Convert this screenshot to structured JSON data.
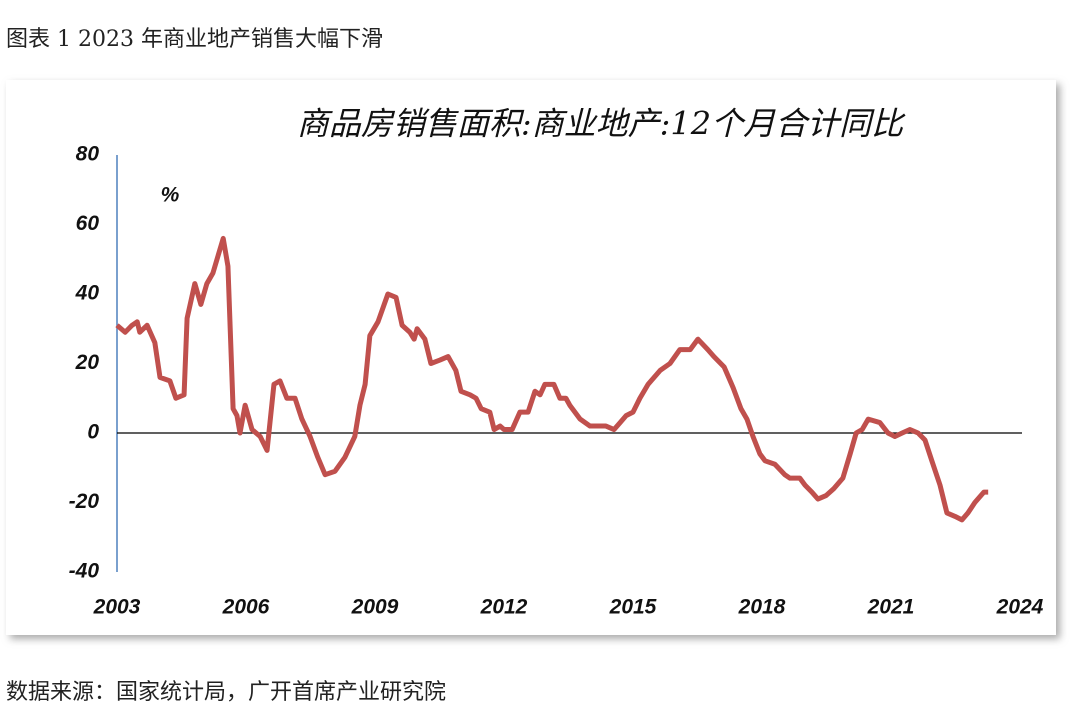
{
  "header": "图表 1 2023 年商业地产销售大幅下滑",
  "source": "数据来源：国家统计局，广开首席产业研究院",
  "chart_data": {
    "type": "line",
    "title": "商品房销售面积:商业地产:12个月合计同比",
    "y_unit": "%",
    "xlim": [
      2003,
      2024
    ],
    "xticks": [
      2003,
      2006,
      2009,
      2012,
      2015,
      2018,
      2021,
      2024
    ],
    "ylim": [
      -40,
      80
    ],
    "yticks": [
      -40,
      -20,
      0,
      20,
      40,
      60,
      80
    ],
    "grid": false,
    "x": [
      2003.0,
      2003.19,
      2003.35,
      2003.47,
      2003.53,
      2003.7,
      2003.88,
      2004.0,
      2004.23,
      2004.37,
      2004.56,
      2004.63,
      2004.81,
      2004.95,
      2005.09,
      2005.23,
      2005.35,
      2005.47,
      2005.58,
      2005.7,
      2005.79,
      2005.86,
      2005.98,
      2006.14,
      2006.33,
      2006.49,
      2006.65,
      2006.79,
      2006.95,
      2007.14,
      2007.3,
      2007.49,
      2007.67,
      2007.84,
      2008.07,
      2008.3,
      2008.53,
      2008.65,
      2008.77,
      2008.88,
      2009.07,
      2009.3,
      2009.49,
      2009.63,
      2009.81,
      2009.91,
      2009.98,
      2010.16,
      2010.3,
      2010.51,
      2010.7,
      2010.88,
      2011.0,
      2011.21,
      2011.35,
      2011.47,
      2011.67,
      2011.77,
      2011.91,
      2012.0,
      2012.19,
      2012.37,
      2012.56,
      2012.72,
      2012.84,
      2012.95,
      2013.16,
      2013.3,
      2013.44,
      2013.53,
      2013.77,
      2014.0,
      2014.23,
      2014.37,
      2014.56,
      2014.7,
      2014.84,
      2015.0,
      2015.16,
      2015.35,
      2015.63,
      2015.86,
      2016.09,
      2016.33,
      2016.51,
      2016.74,
      2016.88,
      2017.12,
      2017.33,
      2017.51,
      2017.65,
      2017.79,
      2017.95,
      2018.07,
      2018.3,
      2018.53,
      2018.65,
      2018.88,
      2019.0,
      2019.16,
      2019.3,
      2019.49,
      2019.67,
      2019.88,
      2020.05,
      2020.19,
      2020.33,
      2020.47,
      2020.74,
      2020.93,
      2021.09,
      2021.26,
      2021.44,
      2021.63,
      2021.79,
      2021.95,
      2022.14,
      2022.3,
      2022.49,
      2022.65,
      2022.79,
      2022.95,
      2023.16,
      2023.26
    ],
    "series": [
      {
        "color": "#c0504d",
        "values": [
          31,
          29,
          31,
          32,
          29,
          31,
          26,
          16,
          15,
          10,
          11,
          33,
          43,
          37,
          43,
          46,
          51,
          56,
          48,
          7,
          5,
          0,
          8,
          1,
          -1,
          -5,
          14,
          15,
          10,
          10,
          4,
          -1,
          -7,
          -12,
          -11,
          -7,
          -1,
          8,
          14,
          28,
          32,
          40,
          39,
          31,
          29,
          27,
          30,
          27,
          20,
          21,
          22,
          18,
          12,
          11,
          10,
          7,
          6,
          1,
          2,
          1,
          1,
          6,
          6,
          12,
          11,
          14,
          14,
          10,
          10,
          8,
          4,
          2,
          2,
          2,
          1,
          3,
          5,
          6,
          10,
          14,
          18,
          20,
          24,
          24,
          27,
          24,
          22,
          19,
          13,
          7,
          4,
          -1,
          -6,
          -8,
          -9,
          -12,
          -13,
          -13,
          -15,
          -17,
          -19,
          -18,
          -16,
          -13,
          -6,
          0,
          1,
          4,
          3,
          0,
          -1,
          0,
          1,
          0,
          -2,
          -8,
          -15,
          -23,
          -24,
          -25,
          -23,
          -20,
          -17,
          -17
        ]
      }
    ]
  }
}
